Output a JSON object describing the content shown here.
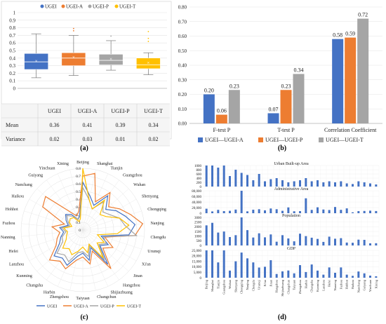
{
  "chart_data": [
    {
      "panel": "(a)",
      "type": "box",
      "legend": [
        "UGEI",
        "UGEI-A",
        "UGEI-P",
        "UGEI-T"
      ],
      "colors": [
        "#4472C4",
        "#ED7D31",
        "#A5A5A5",
        "#FFC000"
      ],
      "yticks": [
        "0",
        "0.1",
        "0.2",
        "0.3",
        "0.4",
        "0.5",
        "0.6",
        "0.7",
        "0.8",
        "0.9",
        "1"
      ],
      "ylim": [
        0,
        1
      ],
      "boxes": [
        {
          "name": "UGEI",
          "min": 0.14,
          "q1": 0.25,
          "median": 0.35,
          "q3": 0.46,
          "max": 0.72,
          "mean": 0.36,
          "outliers": []
        },
        {
          "name": "UGEI-A",
          "min": 0.17,
          "q1": 0.3,
          "median": 0.4,
          "q3": 0.47,
          "max": 0.7,
          "mean": 0.41,
          "outliers": [
            0.76,
            0.79
          ]
        },
        {
          "name": "UGEI-P",
          "min": 0.24,
          "q1": 0.31,
          "median": 0.37,
          "q3": 0.45,
          "max": 0.63,
          "mean": 0.39,
          "outliers": [
            0.69
          ]
        },
        {
          "name": "UGEI-T",
          "min": 0.18,
          "q1": 0.26,
          "median": 0.31,
          "q3": 0.4,
          "max": 0.47,
          "mean": 0.34,
          "outliers": [
            0.62,
            0.66,
            0.75
          ]
        }
      ],
      "table": {
        "header": [
          "",
          "UGEI",
          "UGEI-A",
          "UGEI-P",
          "UGEI-T"
        ],
        "rows": [
          [
            "Mean",
            "0.36",
            "0.41",
            "0.39",
            "0.34"
          ],
          [
            "Variance",
            "0.02",
            "0.03",
            "0.01",
            "0.02"
          ]
        ]
      }
    },
    {
      "panel": "(b)",
      "type": "bar",
      "categories": [
        "F-test P",
        "T-test P",
        "Correlation Coefficient"
      ],
      "series": [
        {
          "name": "UGEI—UGEI-A",
          "values": [
            0.2,
            0.07,
            0.58
          ],
          "labels": [
            "0.20",
            "0.07",
            "0.58"
          ],
          "color": "#4472C4"
        },
        {
          "name": "UGEI—UGEI-P",
          "values": [
            0.06,
            0.23,
            0.59
          ],
          "labels": [
            "0.06",
            "0.23",
            "0.59"
          ],
          "color": "#ED7D31"
        },
        {
          "name": "UGEI—UGEI-T",
          "values": [
            0.23,
            0.34,
            0.72
          ],
          "labels": [
            "0.23",
            "0.34",
            "0.72"
          ],
          "color": "#A5A5A5"
        }
      ],
      "yticks": [
        "0.00",
        "0.10",
        "0.20",
        "0.30",
        "0.40",
        "0.50",
        "0.60",
        "0.70",
        "0.80"
      ],
      "ylim": [
        0,
        0.8
      ]
    },
    {
      "panel": "(c)",
      "type": "radar",
      "ticks": [
        "0",
        "0.1",
        "0.2",
        "0.3",
        "0.4",
        "0.5",
        "0.6",
        "0.7",
        "0.8"
      ],
      "rmax": 0.8,
      "cities": [
        "Beijing",
        "Shanghai",
        "Tianjin",
        "Guangzhou",
        "Wuhan",
        "Shenyang",
        "Chongqing",
        "Nanjing",
        "Chengdu",
        "Urumqi",
        "Xi'an",
        "Jinan",
        "Hangzhou",
        "Shijiazhuang",
        "Changchun",
        "Taiyuan",
        "Zhengzhou",
        "Harbin",
        "Changsha",
        "Kunming",
        "Lanzhou",
        "Hefei",
        "Nanning",
        "Fuzhou",
        "Hohhot",
        "Haikou",
        "Nanchang",
        "Guiyang",
        "Yinchuan",
        "Xining"
      ],
      "series": [
        {
          "name": "UGEI",
          "color": "#4472C4",
          "values": [
            0.62,
            0.45,
            0.35,
            0.55,
            0.4,
            0.5,
            0.58,
            0.68,
            0.6,
            0.25,
            0.38,
            0.3,
            0.55,
            0.25,
            0.4,
            0.3,
            0.35,
            0.5,
            0.45,
            0.5,
            0.35,
            0.3,
            0.25,
            0.3,
            0.2,
            0.25,
            0.3,
            0.25,
            0.15,
            0.2
          ]
        },
        {
          "name": "UGEI-A",
          "color": "#ED7D31",
          "values": [
            0.7,
            0.75,
            0.4,
            0.6,
            0.45,
            0.55,
            0.65,
            0.78,
            0.68,
            0.3,
            0.45,
            0.35,
            0.62,
            0.3,
            0.45,
            0.35,
            0.4,
            0.55,
            0.5,
            0.58,
            0.4,
            0.35,
            0.3,
            0.4,
            0.25,
            0.6,
            0.65,
            0.3,
            0.2,
            0.25
          ]
        },
        {
          "name": "UGEI-P",
          "color": "#A5A5A5",
          "values": [
            0.55,
            0.4,
            0.3,
            0.45,
            0.35,
            0.4,
            0.5,
            0.55,
            0.7,
            0.28,
            0.35,
            0.28,
            0.48,
            0.22,
            0.35,
            0.28,
            0.3,
            0.45,
            0.4,
            0.45,
            0.3,
            0.28,
            0.22,
            0.28,
            0.18,
            0.22,
            0.28,
            0.22,
            0.15,
            0.18
          ]
        },
        {
          "name": "UGEI-T",
          "color": "#FFC000",
          "values": [
            0.8,
            0.4,
            0.3,
            0.48,
            0.3,
            0.35,
            0.5,
            0.6,
            0.45,
            0.2,
            0.32,
            0.25,
            0.45,
            0.2,
            0.3,
            0.22,
            0.28,
            0.35,
            0.3,
            0.35,
            0.25,
            0.22,
            0.2,
            0.25,
            0.15,
            0.2,
            0.22,
            0.2,
            0.12,
            0.15
          ]
        }
      ]
    },
    {
      "panel": "(d)",
      "type": "bar",
      "cities": [
        "Beijing",
        "Shanghai",
        "Tianjin",
        "Chongqing",
        "Shenyang",
        "Wuhan",
        "Guangzhou",
        "Chengdu",
        "Nanjing",
        "Xi'an",
        "Jinan",
        "Hangzhou",
        "Urumqi",
        "Shijiazhuang",
        "Changchun",
        "Taiyuan",
        "Zhengzhou",
        "Harbin",
        "Changsha",
        "Kunming",
        "Lanzhou",
        "Hefei",
        "Nanning",
        "Fuzhou",
        "Hohhot",
        "Haikou",
        "Nanchang",
        "Guiyang",
        "Yinchuan",
        "Xining"
      ],
      "xtick_labels": [
        "Beijing",
        "Shanghai",
        "Tianjin",
        "Guangzhou",
        "Wuhan",
        "Shenyang",
        "Chongqing",
        "Nanjing",
        "Chengdu",
        "Urumqi",
        "Xi'an",
        "Jinan",
        "Hangzhou",
        "Shijiazhuang",
        "Changchun",
        "Taiyuan",
        "Zhengzhou",
        "Harbin",
        "Changsha",
        "Kunming",
        "Lanzhou",
        "Hefei",
        "Nanning",
        "Fuzhou",
        "Hohhot",
        "Haikou",
        "Nanchang",
        "Guiyang",
        "Yinchuan",
        "Xining"
      ],
      "subplots": [
        {
          "title": "Urban Built-up Area",
          "yticks": [
            "0",
            "200",
            "400",
            "600",
            "800",
            "1000"
          ],
          "ymax": 1000,
          "values": [
            1400,
            1250,
            900,
            1000,
            500,
            800,
            650,
            550,
            300,
            600,
            250,
            350,
            400,
            300,
            200,
            250,
            300,
            400,
            250,
            300,
            200,
            250,
            200,
            250,
            150,
            120,
            250,
            200,
            150,
            100
          ]
        },
        {
          "title": "Administrative Area",
          "yticks": [
            "0",
            "20,000",
            "40,000",
            "60,000",
            "80,000"
          ],
          "ymax": 80000,
          "values": [
            16000,
            6300,
            11900,
            7400,
            8500,
            12900,
            82400,
            6600,
            12400,
            14200,
            10200,
            16800,
            14200,
            8500,
            20600,
            6900,
            7400,
            53100,
            11800,
            21000,
            13100,
            11400,
            22100,
            12000,
            17200,
            3100,
            7400,
            8000,
            9000,
            7700
          ]
        },
        {
          "title": "Population",
          "yticks": [
            "0",
            "500",
            "1000",
            "1500",
            "2000",
            "2500",
            "3000"
          ],
          "ymax": 3000,
          "values": [
            2150,
            2420,
            1380,
            1490,
            900,
            1100,
            3100,
            1640,
            850,
            1300,
            870,
            1180,
            400,
            1100,
            750,
            440,
            1260,
            1000,
            830,
            700,
            380,
            940,
            720,
            780,
            310,
            290,
            620,
            600,
            230,
            240
          ]
        },
        {
          "title": "GDP",
          "yticks": [
            "0",
            "5,000",
            "10,000",
            "15,000",
            "20,000",
            "25,000"
          ],
          "ymax": 25000,
          "values": [
            35000,
            38000,
            14000,
            25000,
            6500,
            15000,
            23000,
            17700,
            14000,
            9300,
            10000,
            16000,
            3400,
            5800,
            6600,
            4000,
            11500,
            5200,
            12100,
            6500,
            2800,
            9400,
            4500,
            9400,
            2800,
            1700,
            5700,
            4000,
            1900,
            1300
          ]
        }
      ]
    }
  ],
  "panel_labels": {
    "a": "(a)",
    "b": "(b)",
    "c": "(c)",
    "d": "(d)"
  }
}
